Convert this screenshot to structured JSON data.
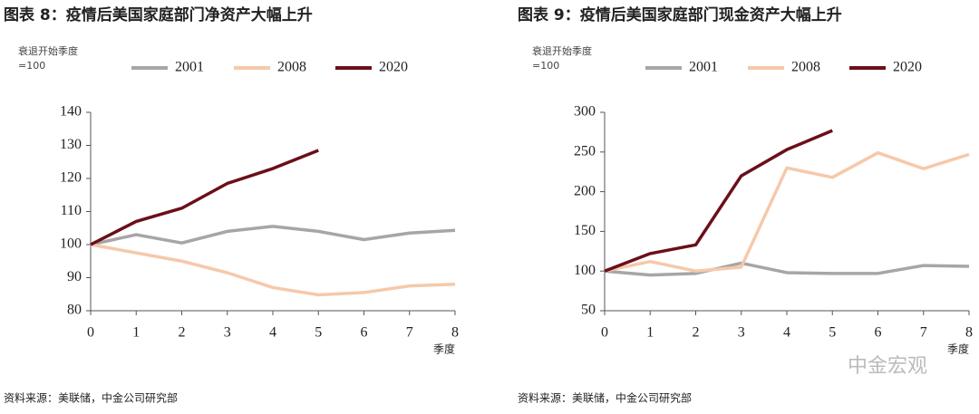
{
  "chart_data": [
    {
      "type": "line",
      "title": "图表 8：疫情后美国家庭部门净资产大幅上升",
      "ylabel": [
        "衰退开始季度",
        "=100"
      ],
      "xlabel": "季度",
      "x": [
        0,
        1,
        2,
        3,
        4,
        5,
        6,
        7,
        8
      ],
      "xlim": [
        0,
        8
      ],
      "xticks": [
        0,
        1,
        2,
        3,
        4,
        5,
        6,
        7,
        8
      ],
      "ylim": [
        80,
        140
      ],
      "yticks": [
        80,
        90,
        100,
        110,
        120,
        130,
        140
      ],
      "series": [
        {
          "name": "2001",
          "color": "#a6a6a6",
          "values": [
            100,
            103,
            100.5,
            104,
            105.5,
            104,
            101.5,
            103.5,
            104.3
          ]
        },
        {
          "name": "2008",
          "color": "#f5c9aa",
          "values": [
            100,
            97.5,
            95,
            91.5,
            87,
            84.8,
            85.5,
            87.5,
            88
          ]
        },
        {
          "name": "2020",
          "color": "#6b0f1a",
          "values": [
            100,
            107,
            111,
            118.5,
            123,
            128.5,
            null,
            null,
            null
          ]
        }
      ],
      "source": "资料来源：美联储，中金公司研究部"
    },
    {
      "type": "line",
      "title": "图表 9：疫情后美国家庭部门现金资产大幅上升",
      "ylabel": [
        "衰退开始季度",
        "=100"
      ],
      "xlabel": "季度",
      "x": [
        0,
        1,
        2,
        3,
        4,
        5,
        6,
        7,
        8
      ],
      "xlim": [
        0,
        8
      ],
      "xticks": [
        0,
        1,
        2,
        3,
        4,
        5,
        6,
        7,
        8
      ],
      "ylim": [
        50,
        300
      ],
      "yticks": [
        50,
        100,
        150,
        200,
        250,
        300
      ],
      "series": [
        {
          "name": "2001",
          "color": "#a6a6a6",
          "values": [
            100,
            95,
            97,
            110,
            98,
            97,
            97,
            107,
            106
          ]
        },
        {
          "name": "2008",
          "color": "#f5c9aa",
          "values": [
            100,
            112,
            100,
            105,
            230,
            218,
            249,
            229,
            247
          ]
        },
        {
          "name": "2020",
          "color": "#6b0f1a",
          "values": [
            100,
            122,
            133,
            220,
            253,
            277,
            null,
            null,
            null
          ]
        }
      ],
      "source": "资料来源：美联储，中金公司研究部"
    }
  ],
  "watermark": "中金宏观"
}
